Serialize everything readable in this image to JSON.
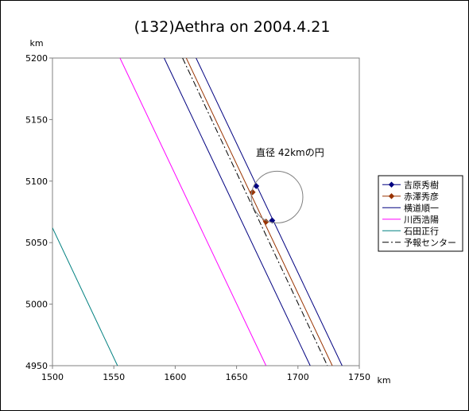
{
  "chart_data": {
    "type": "line",
    "title": "(132)Aethra on 2004.4.21",
    "xlabel": "km",
    "ylabel": "km",
    "xlim": [
      1500,
      1750
    ],
    "ylim": [
      4950,
      5200
    ],
    "x_ticks": [
      1500,
      1550,
      1600,
      1650,
      1700,
      1750
    ],
    "y_ticks": [
      4950,
      5000,
      5050,
      5100,
      5150,
      5200
    ],
    "grid": false,
    "legend_position": "right",
    "annotation": {
      "text": "直径 42kmの円",
      "circle_center": [
        1683,
        5087
      ],
      "circle_diameter": 42
    },
    "series": [
      {
        "name": "吉原秀樹",
        "color": "#000080",
        "style": "solid",
        "marker": "diamond",
        "line": [
          [
            1617,
            5200
          ],
          [
            1736,
            4950
          ]
        ],
        "points": [
          [
            1666,
            5096
          ],
          [
            1679,
            5068
          ]
        ]
      },
      {
        "name": "赤澤秀彦",
        "color": "#993300",
        "style": "solid",
        "marker": "diamond",
        "line": [
          [
            1609,
            5200
          ],
          [
            1728,
            4950
          ]
        ],
        "points": [
          [
            1663,
            5091
          ],
          [
            1674,
            5067
          ]
        ]
      },
      {
        "name": "横道順一",
        "color": "#000080",
        "style": "solid",
        "marker": "none",
        "line": [
          [
            1591,
            5200
          ],
          [
            1710,
            4950
          ]
        ],
        "points": []
      },
      {
        "name": "川西浩陽",
        "color": "#ff00ff",
        "style": "solid",
        "marker": "none",
        "line": [
          [
            1555,
            5200
          ],
          [
            1674,
            4950
          ]
        ],
        "points": []
      },
      {
        "name": "石田正行",
        "color": "#008080",
        "style": "solid",
        "marker": "none",
        "line": [
          [
            1500,
            5062
          ],
          [
            1553,
            4950
          ]
        ],
        "points": []
      },
      {
        "name": "予報センター",
        "color": "#000000",
        "style": "dashdot",
        "marker": "none",
        "line": [
          [
            1606,
            5200
          ],
          [
            1724,
            4950
          ]
        ],
        "points": []
      }
    ]
  }
}
